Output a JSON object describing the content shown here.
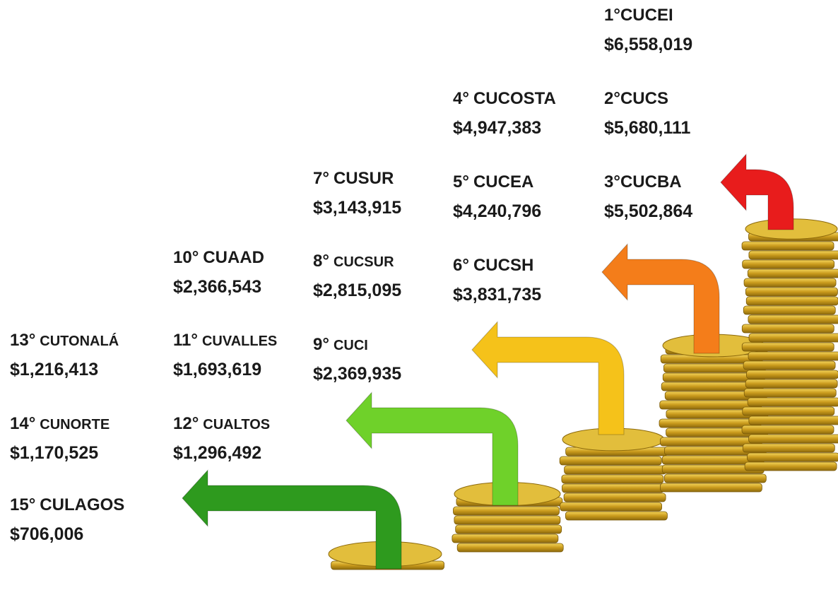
{
  "items": [
    {
      "rank": "1°",
      "name": "CUCEI",
      "amount": "$6,558,019"
    },
    {
      "rank": "2°",
      "name": "CUCS",
      "amount": "$5,680,111"
    },
    {
      "rank": "3°",
      "name": "CUCBA",
      "amount": "$5,502,864"
    },
    {
      "rank": "4°",
      "name": "CUCOSTA",
      "amount": "$4,947,383"
    },
    {
      "rank": "5°",
      "name": "CUCEA",
      "amount": "$4,240,796"
    },
    {
      "rank": "6°",
      "name": "CUCSH",
      "amount": "$3,831,735"
    },
    {
      "rank": "7°",
      "name": "CUSUR",
      "amount": "$3,143,915"
    },
    {
      "rank": "8°",
      "name": "CUCSUR",
      "amount": "$2,815,095"
    },
    {
      "rank": "9°",
      "name": "CUCI",
      "amount": "$2,369,935"
    },
    {
      "rank": "10°",
      "name": "CUAAD",
      "amount": "$2,366,543"
    },
    {
      "rank": "11°",
      "name": "CUVALLES",
      "amount": "$1,693,619"
    },
    {
      "rank": "12°",
      "name": "CUALTOS",
      "amount": "$1,296,492"
    },
    {
      "rank": "13°",
      "name": "CUTONALÁ",
      "amount": "$1,216,413"
    },
    {
      "rank": "14°",
      "name": "CUNORTE",
      "amount": "$1,170,525"
    },
    {
      "rank": "15°",
      "name": "CULAGOS",
      "amount": "$706,006"
    }
  ]
}
